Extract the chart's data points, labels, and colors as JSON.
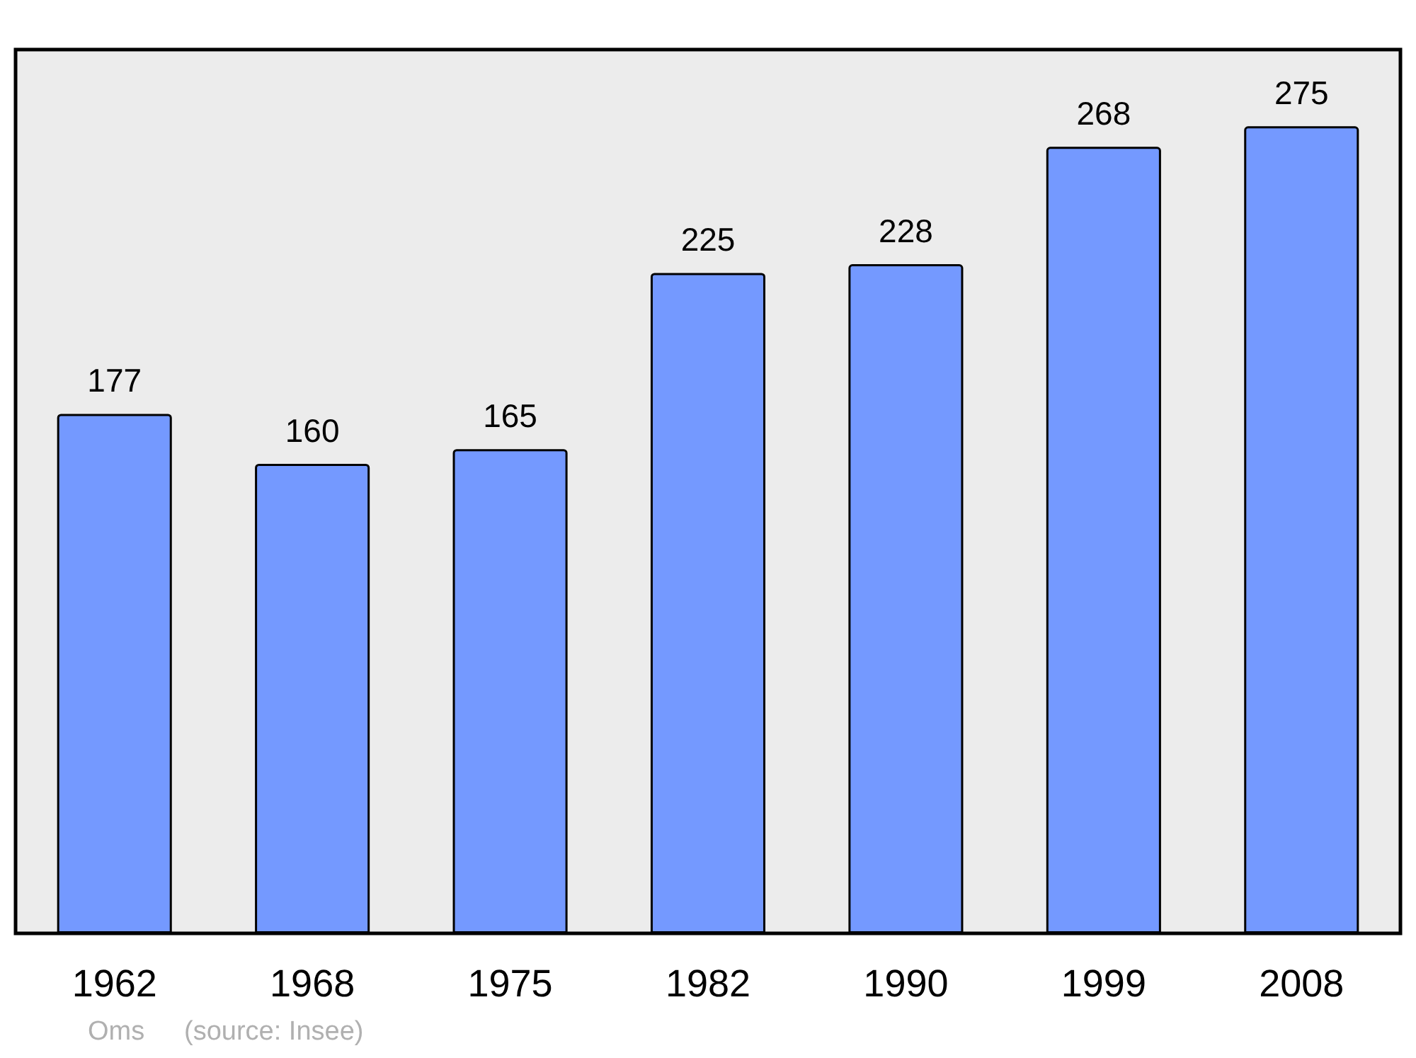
{
  "chart_data": {
    "type": "bar",
    "categories": [
      "1962",
      "1968",
      "1975",
      "1982",
      "1990",
      "1999",
      "2008"
    ],
    "values": [
      177,
      160,
      165,
      225,
      228,
      268,
      275
    ],
    "color": "#7499ff",
    "data_labels": true,
    "annotations": [
      "Oms",
      "(source: Insee)"
    ]
  }
}
